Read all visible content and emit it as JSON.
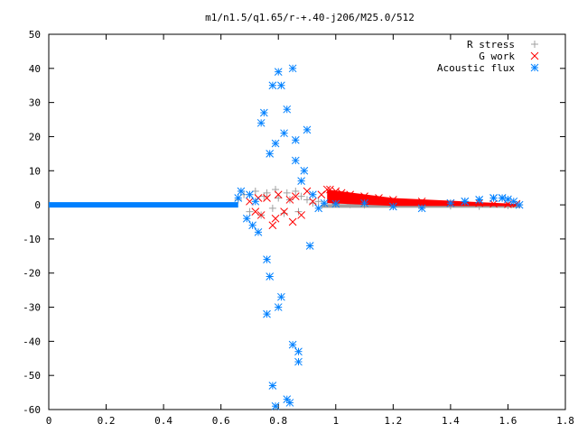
{
  "chart_data": {
    "type": "scatter",
    "title": "m1/n1.5/q1.65/r-+.40-j206/M25.0/512",
    "xlabel": "",
    "ylabel": "",
    "xlim": [
      0,
      1.8
    ],
    "ylim": [
      -60,
      50
    ],
    "x_ticks": [
      "0",
      "0.2",
      "0.4",
      "0.6",
      "0.8",
      "1",
      "1.2",
      "1.4",
      "1.6",
      "1.8"
    ],
    "y_ticks": [
      "50",
      "40",
      "30",
      "20",
      "10",
      "0",
      "-10",
      "-20",
      "-30",
      "-40",
      "-50",
      "-60"
    ],
    "legend_position": "top-right",
    "grid": false,
    "series": [
      {
        "name": "R stress",
        "marker": "plus",
        "color": "#a0a0a0",
        "x": [
          0.66,
          0.68,
          0.7,
          0.72,
          0.74,
          0.75,
          0.76,
          0.78,
          0.79,
          0.8,
          0.82,
          0.83,
          0.84,
          0.86,
          0.87,
          0.88,
          0.9,
          0.92,
          0.94,
          0.96,
          1.0,
          1.05,
          1.1,
          1.2,
          1.3,
          1.4,
          1.5,
          1.6,
          1.64
        ],
        "y": [
          1.5,
          3,
          -2,
          4,
          -3,
          2.5,
          3.5,
          -1,
          4.5,
          2,
          -2.5,
          3.5,
          1.5,
          4,
          -2,
          2.5,
          1.5,
          0.5,
          1,
          0.5,
          0.3,
          0.1,
          0,
          -0.2,
          -0.3,
          -0.3,
          -0.4,
          -0.2,
          0
        ]
      },
      {
        "name": "G work",
        "marker": "cross",
        "color": "#ff0000",
        "x": [
          0.7,
          0.72,
          0.73,
          0.74,
          0.76,
          0.78,
          0.79,
          0.8,
          0.82,
          0.84,
          0.85,
          0.86,
          0.88,
          0.9,
          0.92,
          0.95,
          0.97,
          0.98,
          1.0,
          1.02,
          1.05,
          1.1,
          1.15,
          1.2,
          1.3,
          1.4,
          1.5,
          1.55,
          1.6,
          1.63
        ],
        "y": [
          1,
          -2,
          2,
          -3,
          2,
          -6,
          -4,
          3,
          -2,
          1.5,
          -5,
          2.5,
          -3,
          4,
          1,
          3,
          4.5,
          4.5,
          4,
          3.5,
          3,
          2.5,
          2,
          1.5,
          1,
          0.5,
          0.5,
          0.3,
          0.2,
          0.3
        ]
      },
      {
        "name": "Acoustic flux",
        "marker": "star",
        "color": "#0080ff",
        "x": [
          0.66,
          0.67,
          0.69,
          0.7,
          0.71,
          0.72,
          0.73,
          0.74,
          0.75,
          0.76,
          0.76,
          0.77,
          0.77,
          0.78,
          0.78,
          0.79,
          0.79,
          0.8,
          0.8,
          0.81,
          0.81,
          0.82,
          0.83,
          0.83,
          0.84,
          0.85,
          0.85,
          0.86,
          0.86,
          0.87,
          0.87,
          0.88,
          0.89,
          0.9,
          0.91,
          0.92,
          0.94,
          0.96,
          1.0,
          1.1,
          1.2,
          1.3,
          1.4,
          1.45,
          1.5,
          1.55,
          1.58,
          1.62,
          1.64
        ],
        "y": [
          2,
          4,
          -4,
          3,
          -6,
          1,
          -8,
          24,
          27,
          -32,
          -16,
          15,
          -21,
          35,
          -53,
          18,
          -59,
          39,
          -30,
          35,
          -27,
          21,
          28,
          -57,
          -58,
          40,
          -41,
          19,
          13,
          -43,
          -46,
          7,
          10,
          22,
          -12,
          3,
          -1,
          0.5,
          0.3,
          0.5,
          -0.5,
          -1,
          0.5,
          1,
          1.5,
          2,
          2,
          1,
          0
        ]
      }
    ]
  }
}
